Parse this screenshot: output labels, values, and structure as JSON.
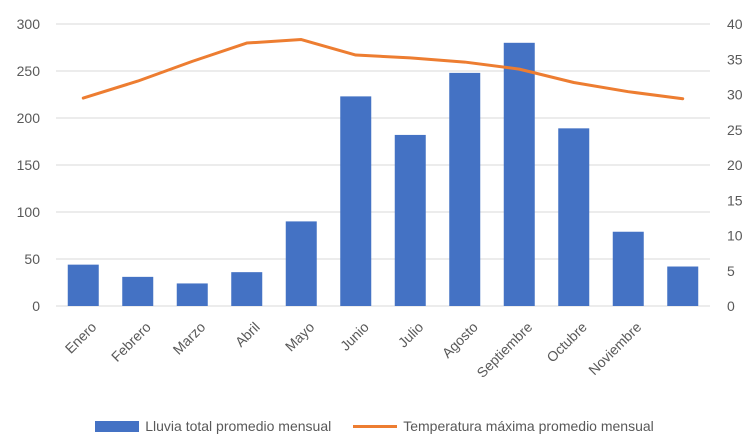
{
  "colors": {
    "bars": "#4472C4",
    "line": "#ED7D31",
    "gridline": "#D9D9D9",
    "text": "#595959"
  },
  "chart_data": {
    "type": "bar",
    "categories": [
      "Enero",
      "Febrero",
      "Marzo",
      "Abril",
      "Mayo",
      "Junio",
      "Julio",
      "Agosto",
      "Septiembre",
      "Octubre",
      "Noviembre",
      ""
    ],
    "series": [
      {
        "name": "Lluvia total promedio mensual",
        "type": "bar",
        "axis": "left",
        "values": [
          44,
          31,
          24,
          36,
          90,
          223,
          182,
          248,
          280,
          189,
          79,
          42
        ]
      },
      {
        "name": "Temperatura máxima promedio mensual",
        "type": "line",
        "axis": "right",
        "values": [
          29.5,
          31.9,
          34.7,
          37.3,
          37.8,
          35.6,
          35.2,
          34.6,
          33.6,
          31.7,
          30.4,
          29.4
        ]
      }
    ],
    "ylim": [
      0,
      300
    ],
    "yticks": [
      0,
      50,
      100,
      150,
      200,
      250,
      300
    ],
    "y2lim": [
      0,
      40
    ],
    "y2ticks": [
      0,
      5,
      10,
      15,
      20,
      25,
      30,
      35,
      40
    ],
    "grid": true,
    "legend_position": "bottom"
  }
}
